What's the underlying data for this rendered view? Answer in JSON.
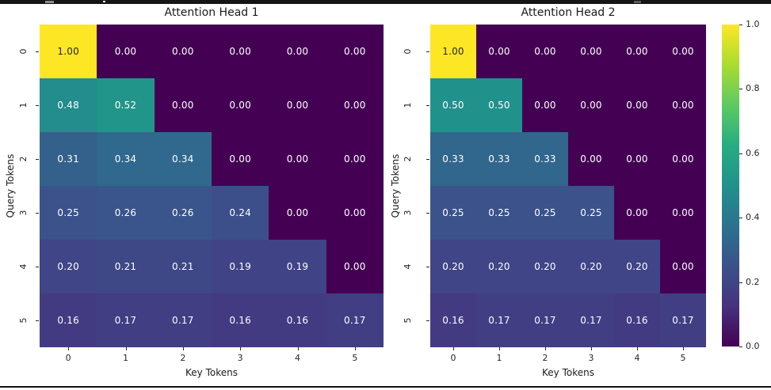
{
  "window": {
    "top_bar_color": "#151515",
    "bottom_border_color": "#101010"
  },
  "chart_data": {
    "type": "heatmap",
    "colormap": {
      "name": "viridis",
      "stops": [
        [
          0.0,
          "#440154"
        ],
        [
          0.125,
          "#46327e"
        ],
        [
          0.25,
          "#3b528b"
        ],
        [
          0.375,
          "#2c728e"
        ],
        [
          0.5,
          "#21918c"
        ],
        [
          0.625,
          "#27ad81"
        ],
        [
          0.75,
          "#5ec962"
        ],
        [
          0.875,
          "#aadc32"
        ],
        [
          1.0,
          "#fde725"
        ]
      ]
    },
    "vmin": 0.0,
    "vmax": 1.0,
    "annotation_colors": {
      "light_text": "#ffffff",
      "dark_text": "#262626"
    },
    "plots": [
      {
        "title": "Attention Head 1",
        "xlabel": "Key Tokens",
        "ylabel": "Query Tokens",
        "x_ticks": [
          "0",
          "1",
          "2",
          "3",
          "4",
          "5"
        ],
        "y_ticks": [
          "0",
          "1",
          "2",
          "3",
          "4",
          "5"
        ],
        "values": [
          [
            1.0,
            0.0,
            0.0,
            0.0,
            0.0,
            0.0
          ],
          [
            0.48,
            0.52,
            0.0,
            0.0,
            0.0,
            0.0
          ],
          [
            0.31,
            0.34,
            0.34,
            0.0,
            0.0,
            0.0
          ],
          [
            0.25,
            0.26,
            0.26,
            0.24,
            0.0,
            0.0
          ],
          [
            0.2,
            0.21,
            0.21,
            0.19,
            0.19,
            0.0
          ],
          [
            0.16,
            0.17,
            0.17,
            0.16,
            0.16,
            0.17
          ]
        ]
      },
      {
        "title": "Attention Head 2",
        "xlabel": "Key Tokens",
        "ylabel": "Query Tokens",
        "x_ticks": [
          "0",
          "1",
          "2",
          "3",
          "4",
          "5"
        ],
        "y_ticks": [
          "0",
          "1",
          "2",
          "3",
          "4",
          "5"
        ],
        "values": [
          [
            1.0,
            0.0,
            0.0,
            0.0,
            0.0,
            0.0
          ],
          [
            0.5,
            0.5,
            0.0,
            0.0,
            0.0,
            0.0
          ],
          [
            0.33,
            0.33,
            0.33,
            0.0,
            0.0,
            0.0
          ],
          [
            0.25,
            0.25,
            0.25,
            0.25,
            0.0,
            0.0
          ],
          [
            0.2,
            0.2,
            0.2,
            0.2,
            0.2,
            0.0
          ],
          [
            0.16,
            0.17,
            0.17,
            0.17,
            0.16,
            0.17
          ]
        ]
      }
    ],
    "colorbar": {
      "tick_labels": [
        "1.0",
        "0.8",
        "0.6",
        "0.4",
        "0.2",
        "0.0"
      ],
      "tick_values": [
        1.0,
        0.8,
        0.6,
        0.4,
        0.2,
        0.0
      ],
      "position": "right"
    }
  }
}
